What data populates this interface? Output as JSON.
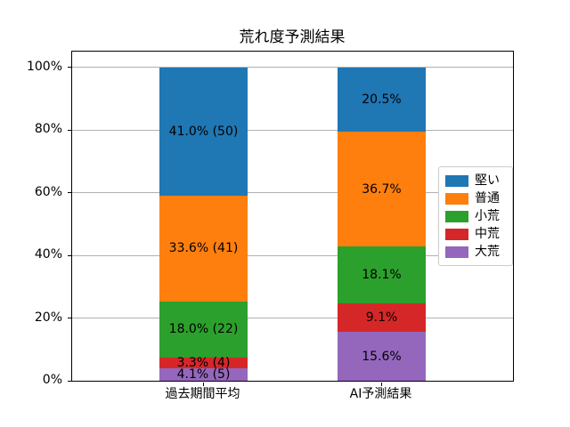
{
  "chart_data": {
    "type": "bar",
    "subtype": "stacked-percentage-bar",
    "title": "荒れ度予測結果",
    "categories": [
      "過去期間平均",
      "AI予測結果"
    ],
    "series": [
      {
        "name": "堅い",
        "color": "#1f77b4",
        "values": [
          41.0,
          20.5
        ],
        "labels": [
          "41.0% (50)",
          "20.5%"
        ]
      },
      {
        "name": "普通",
        "color": "#ff7f0e",
        "values": [
          33.6,
          36.7
        ],
        "labels": [
          "33.6% (41)",
          "36.7%"
        ]
      },
      {
        "name": "小荒",
        "color": "#2ca02c",
        "values": [
          18.0,
          18.1
        ],
        "labels": [
          "18.0% (22)",
          "18.1%"
        ]
      },
      {
        "name": "中荒",
        "color": "#d62728",
        "values": [
          3.3,
          9.1
        ],
        "labels": [
          "3.3% (4)",
          "9.1%"
        ]
      },
      {
        "name": "大荒",
        "color": "#9467bd",
        "values": [
          4.1,
          15.6
        ],
        "labels": [
          "4.1% (5)",
          "15.6%"
        ]
      }
    ],
    "category_counts": {
      "過去期間平均": [
        50,
        41,
        22,
        4,
        5
      ]
    },
    "stack_order": "first series on top, last series at bottom",
    "y_ticks": [
      "0%",
      "20%",
      "40%",
      "60%",
      "80%",
      "100%"
    ],
    "y_tick_values": [
      0,
      20,
      40,
      60,
      80,
      100
    ],
    "ylim": [
      0,
      105
    ],
    "xlabel": "",
    "ylabel": "",
    "grid": true,
    "gridline_color": "#b0b0b0",
    "legend_position": "center right inside plot",
    "legend_entries": [
      "堅い",
      "普通",
      "小荒",
      "中荒",
      "大荒"
    ],
    "background_color": "#ffffff",
    "text_color": "#000000"
  }
}
